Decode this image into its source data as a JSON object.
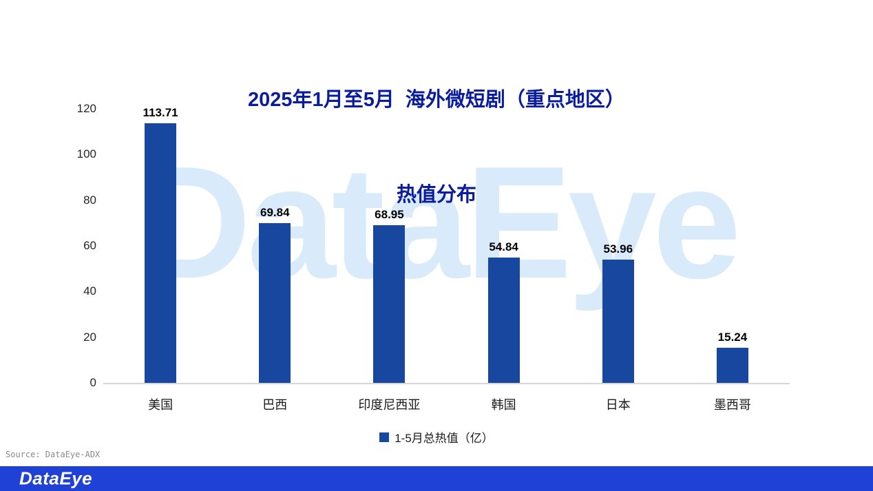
{
  "title": {
    "line1": "2025年1月至5月  海外微短剧（重点地区）",
    "line2": "热值分布"
  },
  "watermark_text": "DataEye",
  "chart_data": {
    "type": "bar",
    "title": "2025年1月至5月 海外微短剧（重点地区）热值分布",
    "categories": [
      "美国",
      "巴西",
      "印度尼西亚",
      "韩国",
      "日本",
      "墨西哥"
    ],
    "values": [
      113.71,
      69.84,
      68.95,
      54.84,
      53.96,
      15.24
    ],
    "series": [
      {
        "name": "1-5月总热值（亿）",
        "values": [
          113.71,
          69.84,
          68.95,
          54.84,
          53.96,
          15.24
        ]
      }
    ],
    "xlabel": "",
    "ylabel": "",
    "ylim": [
      0,
      120
    ],
    "yticks": [
      0,
      20,
      40,
      60,
      80,
      100,
      120
    ],
    "grid": false,
    "legend_position": "bottom",
    "bar_color": "#17479E"
  },
  "legend": {
    "label": "1-5月总热值（亿）",
    "swatch_color": "#17479E"
  },
  "source_text": "Source: DataEye-ADX",
  "footer": {
    "logo_text": "DataEye",
    "bar_color": "#1F41D6"
  },
  "colors": {
    "title": "#0A1C9E",
    "bar": "#17479E",
    "watermark": "#D9EAFB",
    "axis_line": "#D6D6D6",
    "footer_bar": "#1F41D6"
  }
}
